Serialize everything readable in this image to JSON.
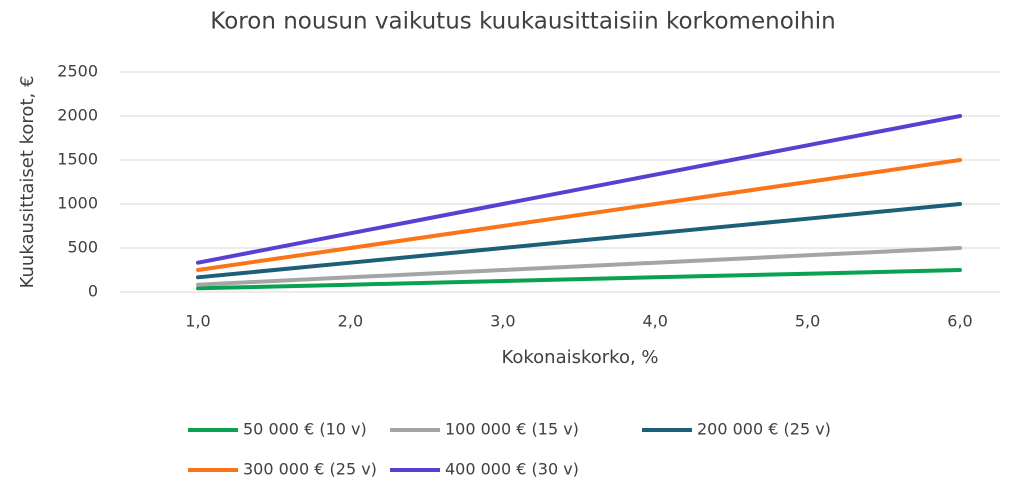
{
  "chart_data": {
    "type": "line",
    "title": "Koron nousun vaikutus kuukausittaisiin korkomenoihin",
    "x_label": "Kokonaiskorko, %",
    "y_label": "Kuukausittaiset korot, €",
    "categories": [
      "1,0",
      "2,0",
      "3,0",
      "4,0",
      "5,0",
      "6,0"
    ],
    "series": [
      {
        "name": "50 000 € (10 v)",
        "color": "#0aa14f",
        "values": [
          42,
          83,
          125,
          167,
          208,
          250
        ]
      },
      {
        "name": "100 000 € (15 v)",
        "color": "#a5a5a5",
        "values": [
          83,
          167,
          250,
          333,
          417,
          500
        ]
      },
      {
        "name": "200 000 € (25 v)",
        "color": "#1c5f78",
        "values": [
          167,
          333,
          500,
          667,
          833,
          1000
        ]
      },
      {
        "name": "300 000 € (25 v)",
        "color": "#fb7417",
        "values": [
          250,
          500,
          750,
          1000,
          1250,
          1500
        ]
      },
      {
        "name": "400 000 € (30 v)",
        "color": "#5b3ed2",
        "values": [
          333,
          667,
          1000,
          1333,
          1667,
          2000
        ]
      }
    ],
    "ylim": [
      0,
      2500
    ],
    "yticks": [
      0,
      500,
      1000,
      1500,
      2000,
      2500
    ],
    "grid": true,
    "legend": "bottom"
  }
}
